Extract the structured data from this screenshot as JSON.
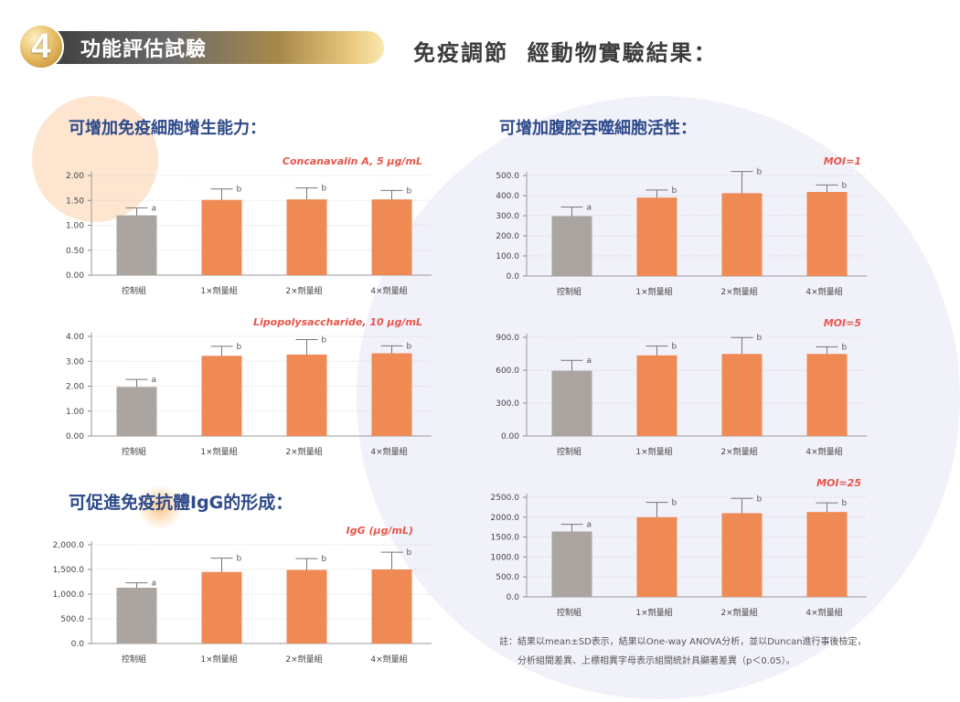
{
  "banner": {
    "number": "4",
    "title": "功能評估試驗"
  },
  "header": {
    "title": "免疫調節  經動物實驗結果："
  },
  "sections": {
    "proliferation": "可增加免疫細胞增生能力：",
    "igg": "可促進免疫抗體IgG的形成：",
    "phagocytosis": "可增加腹腔吞噬細胞活性："
  },
  "footnote": {
    "line1": "註：結果以mean±SD表示，結果以One-way ANOVA分析，並以Duncan進行事後檢定，",
    "line2": "分析組間差異、上標相異字母表示組間統計具顯著差異（p＜0.05）。"
  },
  "colors": {
    "control": "#aaa5a0",
    "treatment": "#ef8a55",
    "annotation": "#e8554a",
    "section": "#2d4a8a"
  },
  "chart_data": [
    {
      "id": "con-a",
      "type": "bar",
      "title": "Concanavalin A, 5 μg/mL",
      "categories": [
        "控制組",
        "1×劑量組",
        "2×劑量組",
        "4×劑量組"
      ],
      "values": [
        1.2,
        1.51,
        1.52,
        1.52
      ],
      "errors": [
        0.15,
        0.22,
        0.23,
        0.18
      ],
      "letters": [
        "a",
        "b",
        "b",
        "b"
      ],
      "ylim": [
        0,
        2.0
      ],
      "yticks": [
        0,
        0.5,
        1.0,
        1.5,
        2.0
      ],
      "ytick_labels": [
        "0.00",
        "0.50",
        "1.00",
        "1.50",
        "2.00"
      ]
    },
    {
      "id": "lps",
      "type": "bar",
      "title": "Lipopolysaccharide, 10 μg/mL",
      "categories": [
        "控制組",
        "1×劑量組",
        "2×劑量組",
        "4×劑量組"
      ],
      "values": [
        1.97,
        3.22,
        3.27,
        3.32
      ],
      "errors": [
        0.3,
        0.38,
        0.6,
        0.3
      ],
      "letters": [
        "a",
        "b",
        "b",
        "b"
      ],
      "ylim": [
        0,
        4.0
      ],
      "yticks": [
        0,
        1,
        2,
        3,
        4
      ],
      "ytick_labels": [
        "0.00",
        "1.00",
        "2.00",
        "3.00",
        "4.00"
      ]
    },
    {
      "id": "igg",
      "type": "bar",
      "title": "IgG (μg/mL)",
      "categories": [
        "控制組",
        "1×劑量組",
        "2×劑量組",
        "4×劑量組"
      ],
      "values": [
        1130,
        1450,
        1490,
        1500
      ],
      "errors": [
        100,
        280,
        230,
        350
      ],
      "letters": [
        "a",
        "b",
        "b",
        "b"
      ],
      "ylim": [
        0,
        2000
      ],
      "yticks": [
        0,
        500,
        1000,
        1500,
        2000
      ],
      "ytick_labels": [
        "0.0",
        "500.0",
        "1,000.0",
        "1,500.0",
        "2,000.0"
      ]
    },
    {
      "id": "moi1",
      "type": "bar",
      "title": "MOI=1",
      "categories": [
        "控制組",
        "1×劑量組",
        "2×劑量組",
        "4×劑量組"
      ],
      "values": [
        298,
        390,
        412,
        418
      ],
      "errors": [
        45,
        38,
        108,
        35
      ],
      "letters": [
        "a",
        "b",
        "b",
        "b"
      ],
      "ylim": [
        0,
        500
      ],
      "yticks": [
        0,
        100,
        200,
        300,
        400,
        500
      ],
      "ytick_labels": [
        "0.0",
        "100.0",
        "200.0",
        "300.0",
        "400.0",
        "500.0"
      ]
    },
    {
      "id": "moi5",
      "type": "bar",
      "title": "MOI=5",
      "categories": [
        "控制組",
        "1×劑量組",
        "2×劑量組",
        "4×劑量組"
      ],
      "values": [
        595,
        735,
        748,
        748
      ],
      "errors": [
        95,
        85,
        150,
        65
      ],
      "letters": [
        "a",
        "b",
        "b",
        "b"
      ],
      "ylim": [
        0,
        900
      ],
      "yticks": [
        0,
        300,
        600,
        900
      ],
      "ytick_labels": [
        "0.00",
        "300.0",
        "600.0",
        "900.0"
      ]
    },
    {
      "id": "moi25",
      "type": "bar",
      "title": "MOI=25",
      "categories": [
        "控制組",
        "1×劑量組",
        "2×劑量組",
        "4×劑量組"
      ],
      "values": [
        1640,
        2000,
        2100,
        2130
      ],
      "errors": [
        180,
        370,
        370,
        230
      ],
      "letters": [
        "a",
        "b",
        "b",
        "b"
      ],
      "ylim": [
        0,
        2500
      ],
      "yticks": [
        0,
        500,
        1000,
        1500,
        2000,
        2500
      ],
      "ytick_labels": [
        "0.0",
        "500.0",
        "1000.0",
        "1500.0",
        "2000.0",
        "2500.0"
      ]
    }
  ]
}
